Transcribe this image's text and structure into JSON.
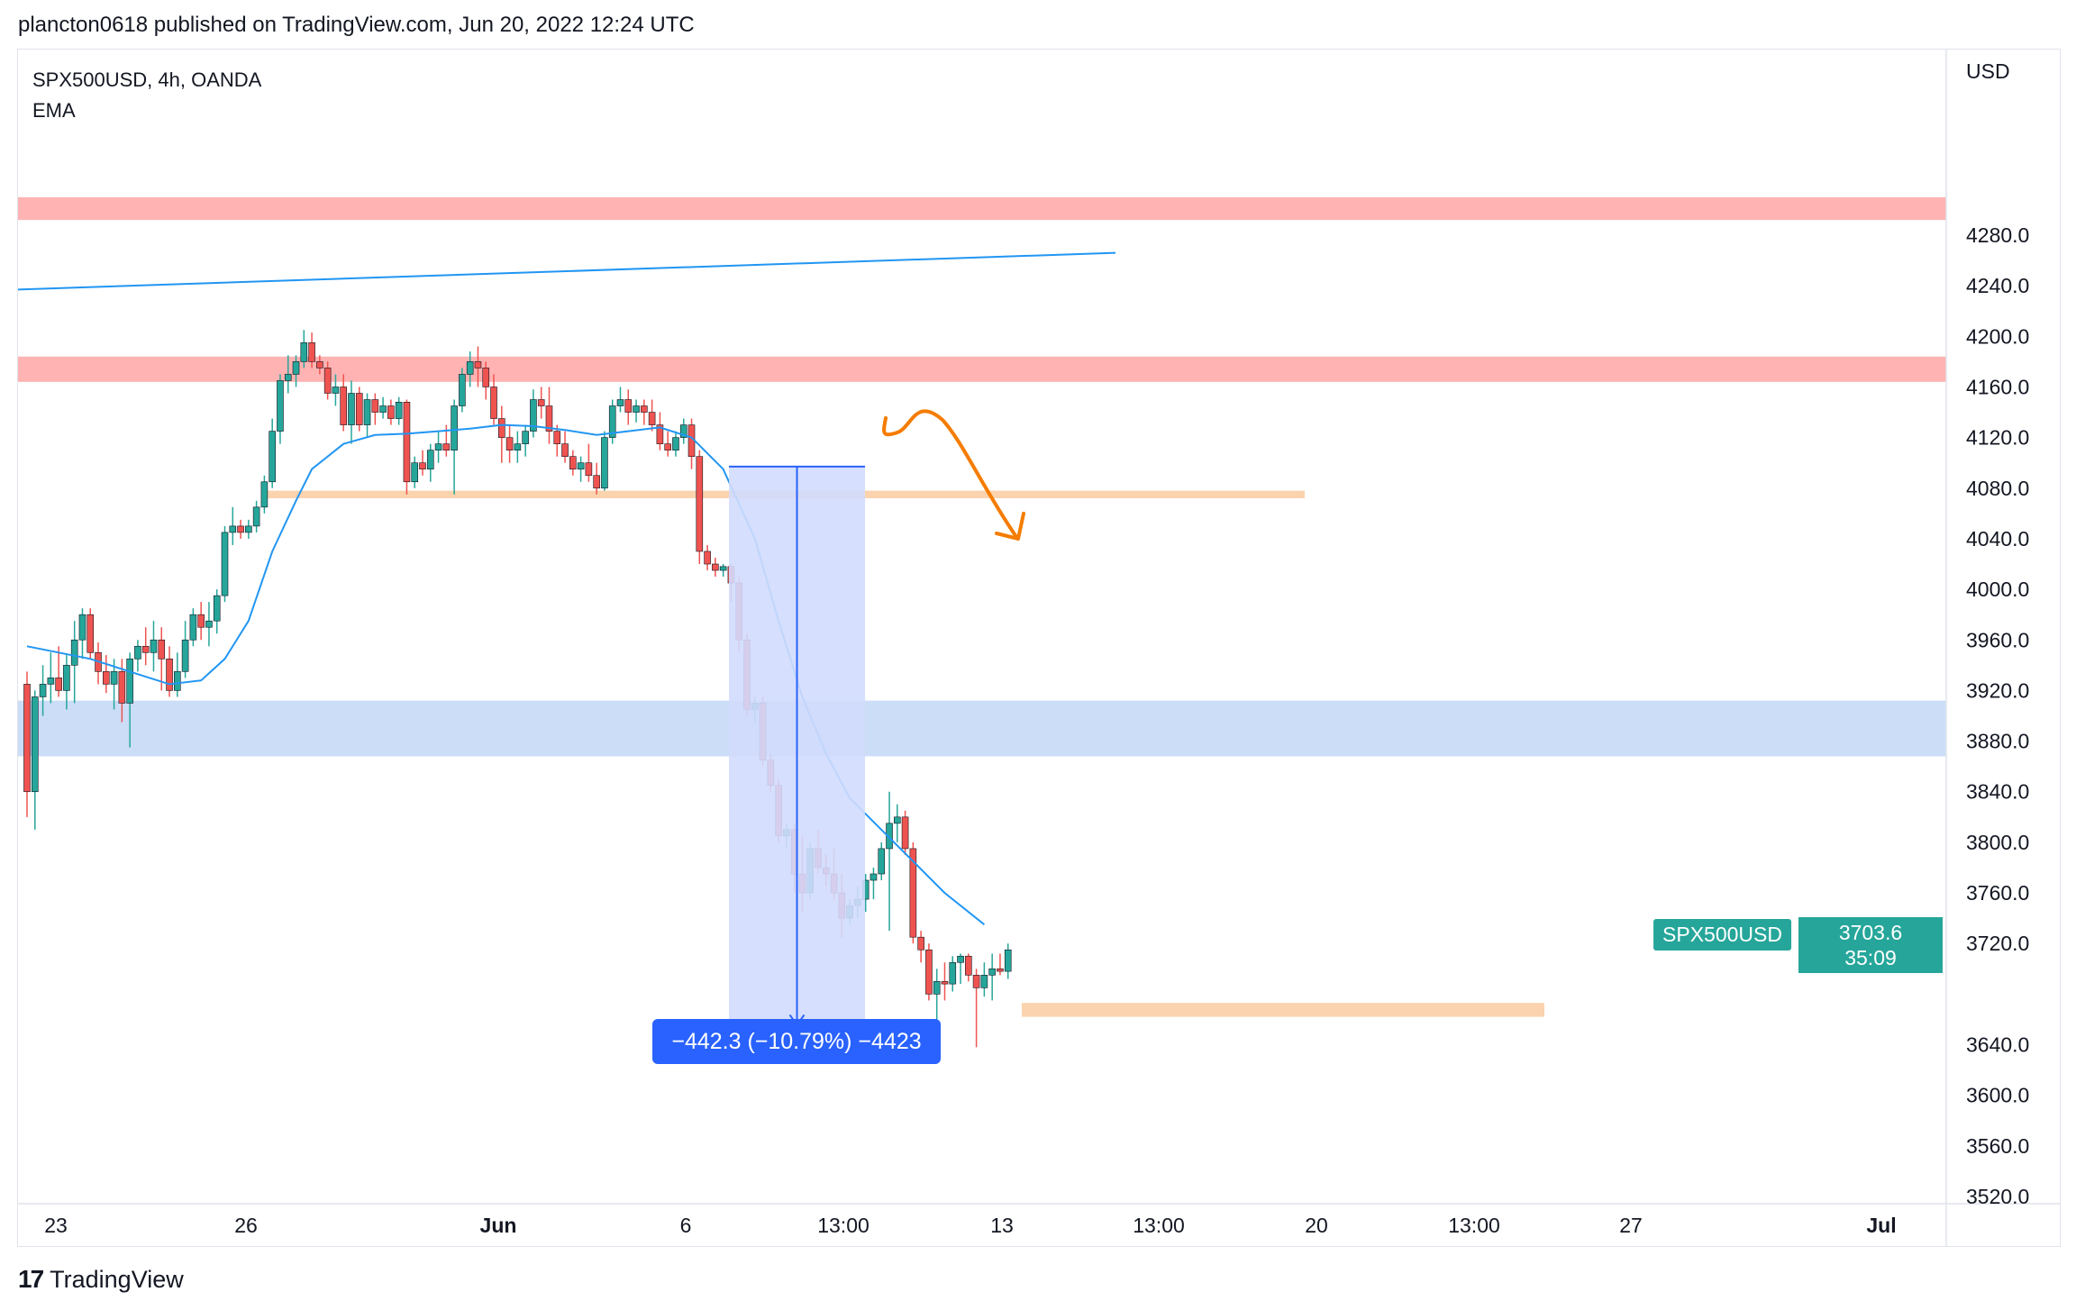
{
  "header": {
    "publisher": "plancton0618 published on TradingView.com, Jun 20, 2022 12:24 UTC"
  },
  "legend": {
    "symbol": "SPX500USD, 4h, OANDA",
    "indicator": "EMA"
  },
  "price_axis": {
    "currency": "USD",
    "ticks": [
      "4280.0",
      "4240.0",
      "4200.0",
      "4160.0",
      "4120.0",
      "4080.0",
      "4040.0",
      "4000.0",
      "3960.0",
      "3920.0",
      "3880.0",
      "3840.0",
      "3800.0",
      "3760.0",
      "3720.0",
      "3640.0",
      "3600.0",
      "3560.0",
      "3520.0"
    ]
  },
  "time_axis": {
    "ticks": [
      "23",
      "26",
      "Jun",
      "6",
      "13:00",
      "13",
      "13:00",
      "20",
      "13:00",
      "27",
      "Jul"
    ]
  },
  "last_price": {
    "symbol": "SPX500USD",
    "value": "3703.6",
    "countdown": "35:09"
  },
  "measure": {
    "label": "−442.3 (−10.79%) −4423"
  },
  "footer": {
    "brand": "TradingView",
    "logo": "17"
  },
  "colors": {
    "up": "#26a69a",
    "down": "#ef5350",
    "ema": "#2196f3",
    "resistance_zone": "#ffb3b3",
    "support_zone": "#fbd3ae",
    "blue_zone": "#bbd1f6",
    "measure_fill": "#d1dcfd",
    "arrow_drawing": "#f57c00"
  },
  "chart_data": {
    "type": "candlestick",
    "title": "SPX500USD, 4h, OANDA",
    "yrange": [
      3520,
      4305
    ],
    "ohlc": [
      [
        3925,
        3935,
        3820,
        3840
      ],
      [
        3840,
        3920,
        3810,
        3915
      ],
      [
        3915,
        3940,
        3900,
        3925
      ],
      [
        3925,
        3950,
        3910,
        3930
      ],
      [
        3930,
        3955,
        3915,
        3920
      ],
      [
        3920,
        3948,
        3905,
        3940
      ],
      [
        3940,
        3975,
        3910,
        3960
      ],
      [
        3960,
        3985,
        3945,
        3980
      ],
      [
        3980,
        3985,
        3945,
        3950
      ],
      [
        3950,
        3958,
        3925,
        3935
      ],
      [
        3935,
        3948,
        3918,
        3925
      ],
      [
        3925,
        3945,
        3905,
        3935
      ],
      [
        3935,
        3945,
        3895,
        3910
      ],
      [
        3910,
        3950,
        3875,
        3945
      ],
      [
        3945,
        3960,
        3935,
        3955
      ],
      [
        3955,
        3970,
        3940,
        3950
      ],
      [
        3950,
        3975,
        3935,
        3960
      ],
      [
        3960,
        3970,
        3920,
        3945
      ],
      [
        3945,
        3955,
        3915,
        3920
      ],
      [
        3920,
        3950,
        3915,
        3935
      ],
      [
        3935,
        3975,
        3930,
        3960
      ],
      [
        3960,
        3985,
        3955,
        3980
      ],
      [
        3980,
        3990,
        3960,
        3970
      ],
      [
        3970,
        3990,
        3955,
        3975
      ],
      [
        3975,
        4000,
        3965,
        3995
      ],
      [
        3995,
        4050,
        3990,
        4045
      ],
      [
        4045,
        4065,
        4035,
        4050
      ],
      [
        4050,
        4055,
        4040,
        4045
      ],
      [
        4045,
        4055,
        4040,
        4050
      ],
      [
        4050,
        4070,
        4045,
        4065
      ],
      [
        4065,
        4090,
        4060,
        4085
      ],
      [
        4085,
        4135,
        4080,
        4125
      ],
      [
        4125,
        4170,
        4115,
        4165
      ],
      [
        4165,
        4185,
        4155,
        4170
      ],
      [
        4170,
        4185,
        4160,
        4180
      ],
      [
        4180,
        4205,
        4175,
        4195
      ],
      [
        4195,
        4203,
        4175,
        4180
      ],
      [
        4180,
        4185,
        4170,
        4175
      ],
      [
        4175,
        4180,
        4150,
        4155
      ],
      [
        4155,
        4170,
        4145,
        4160
      ],
      [
        4160,
        4170,
        4125,
        4130
      ],
      [
        4130,
        4165,
        4115,
        4155
      ],
      [
        4155,
        4160,
        4125,
        4130
      ],
      [
        4130,
        4155,
        4120,
        4150
      ],
      [
        4150,
        4155,
        4130,
        4140
      ],
      [
        4140,
        4152,
        4135,
        4145
      ],
      [
        4145,
        4150,
        4130,
        4135
      ],
      [
        4135,
        4152,
        4130,
        4148
      ],
      [
        4148,
        4150,
        4075,
        4085
      ],
      [
        4085,
        4105,
        4080,
        4100
      ],
      [
        4100,
        4110,
        4090,
        4095
      ],
      [
        4095,
        4115,
        4085,
        4110
      ],
      [
        4110,
        4125,
        4100,
        4115
      ],
      [
        4115,
        4130,
        4105,
        4110
      ],
      [
        4110,
        4150,
        4075,
        4145
      ],
      [
        4145,
        4175,
        4140,
        4170
      ],
      [
        4170,
        4188,
        4160,
        4180
      ],
      [
        4180,
        4192,
        4160,
        4175
      ],
      [
        4175,
        4180,
        4150,
        4160
      ],
      [
        4160,
        4170,
        4130,
        4135
      ],
      [
        4135,
        4145,
        4100,
        4120
      ],
      [
        4120,
        4130,
        4100,
        4110
      ],
      [
        4110,
        4125,
        4100,
        4115
      ],
      [
        4115,
        4130,
        4105,
        4125
      ],
      [
        4125,
        4158,
        4120,
        4150
      ],
      [
        4150,
        4160,
        4135,
        4145
      ],
      [
        4145,
        4160,
        4115,
        4125
      ],
      [
        4125,
        4130,
        4105,
        4115
      ],
      [
        4115,
        4125,
        4100,
        4105
      ],
      [
        4105,
        4110,
        4090,
        4095
      ],
      [
        4095,
        4105,
        4085,
        4100
      ],
      [
        4100,
        4115,
        4085,
        4090
      ],
      [
        4090,
        4100,
        4075,
        4080
      ],
      [
        4080,
        4125,
        4078,
        4120
      ],
      [
        4120,
        4150,
        4115,
        4145
      ],
      [
        4145,
        4160,
        4140,
        4150
      ],
      [
        4150,
        4158,
        4130,
        4140
      ],
      [
        4140,
        4150,
        4132,
        4145
      ],
      [
        4145,
        4150,
        4130,
        4140
      ],
      [
        4140,
        4150,
        4125,
        4130
      ],
      [
        4130,
        4140,
        4110,
        4115
      ],
      [
        4115,
        4125,
        4105,
        4110
      ],
      [
        4110,
        4125,
        4105,
        4120
      ],
      [
        4120,
        4135,
        4115,
        4130
      ],
      [
        4130,
        4135,
        4095,
        4105
      ],
      [
        4105,
        4110,
        4020,
        4030
      ],
      [
        4030,
        4035,
        4015,
        4020
      ],
      [
        4020,
        4025,
        4010,
        4015
      ],
      [
        4015,
        4020,
        4010,
        4018
      ],
      [
        4018,
        4020,
        3990,
        4005
      ],
      [
        4005,
        4010,
        3950,
        3960
      ],
      [
        3960,
        3965,
        3900,
        3905
      ],
      [
        3905,
        3915,
        3895,
        3910
      ],
      [
        3910,
        3915,
        3860,
        3865
      ],
      [
        3865,
        3870,
        3840,
        3845
      ],
      [
        3845,
        3850,
        3800,
        3805
      ],
      [
        3805,
        3815,
        3795,
        3810
      ],
      [
        3810,
        3815,
        3760,
        3775
      ],
      [
        3775,
        3805,
        3745,
        3760
      ],
      [
        3760,
        3800,
        3755,
        3795
      ],
      [
        3795,
        3810,
        3775,
        3780
      ],
      [
        3780,
        3790,
        3765,
        3775
      ],
      [
        3775,
        3795,
        3755,
        3760
      ],
      [
        3760,
        3775,
        3725,
        3740
      ],
      [
        3740,
        3755,
        3735,
        3750
      ],
      [
        3750,
        3765,
        3740,
        3755
      ],
      [
        3755,
        3775,
        3745,
        3770
      ],
      [
        3770,
        3780,
        3755,
        3775
      ],
      [
        3775,
        3800,
        3770,
        3795
      ],
      [
        3795,
        3840,
        3730,
        3815
      ],
      [
        3815,
        3830,
        3800,
        3820
      ],
      [
        3820,
        3825,
        3790,
        3795
      ],
      [
        3795,
        3800,
        3720,
        3725
      ],
      [
        3725,
        3730,
        3705,
        3715
      ],
      [
        3715,
        3720,
        3675,
        3680
      ],
      [
        3680,
        3700,
        3640,
        3690
      ],
      [
        3690,
        3705,
        3675,
        3688
      ],
      [
        3688,
        3710,
        3682,
        3705
      ],
      [
        3705,
        3712,
        3688,
        3710
      ],
      [
        3710,
        3712,
        3690,
        3695
      ],
      [
        3695,
        3700,
        3638,
        3685
      ],
      [
        3685,
        3705,
        3678,
        3695
      ],
      [
        3695,
        3712,
        3675,
        3700
      ],
      [
        3700,
        3712,
        3695,
        3698
      ],
      [
        3698,
        3720,
        3692,
        3715
      ]
    ],
    "ema": [
      [
        0,
        3955
      ],
      [
        8,
        3945
      ],
      [
        13,
        3935
      ],
      [
        18,
        3925
      ],
      [
        22,
        3928
      ],
      [
        25,
        3945
      ],
      [
        28,
        3975
      ],
      [
        31,
        4030
      ],
      [
        34,
        4070
      ],
      [
        36,
        4095
      ],
      [
        40,
        4115
      ],
      [
        44,
        4122
      ],
      [
        48,
        4123
      ],
      [
        52,
        4125
      ],
      [
        56,
        4127
      ],
      [
        60,
        4130
      ],
      [
        64,
        4129
      ],
      [
        68,
        4126
      ],
      [
        72,
        4122
      ],
      [
        76,
        4125
      ],
      [
        80,
        4128
      ],
      [
        84,
        4120
      ],
      [
        88,
        4095
      ],
      [
        92,
        4040
      ],
      [
        95,
        3975
      ],
      [
        98,
        3915
      ],
      [
        101,
        3870
      ],
      [
        104,
        3835
      ],
      [
        108,
        3810
      ],
      [
        112,
        3785
      ],
      [
        116,
        3760
      ],
      [
        121,
        3735
      ]
    ],
    "trendline": {
      "from": [
        "2022-05-23",
        4237
      ],
      "to": [
        "2022-06-17",
        4266
      ]
    },
    "zones": [
      {
        "kind": "resistance",
        "from": 4292,
        "to": 4310
      },
      {
        "kind": "resistance",
        "from": 4164,
        "to": 4184
      },
      {
        "kind": "support",
        "from": 4072,
        "to": 4078
      },
      {
        "kind": "demand",
        "from": 3868,
        "to": 3912
      },
      {
        "kind": "support",
        "from": 3662,
        "to": 3673
      }
    ],
    "measure": {
      "from_price": 4097,
      "to_price": 3655,
      "change": -442.3,
      "change_pct": -10.79
    },
    "last": 3703.6
  }
}
